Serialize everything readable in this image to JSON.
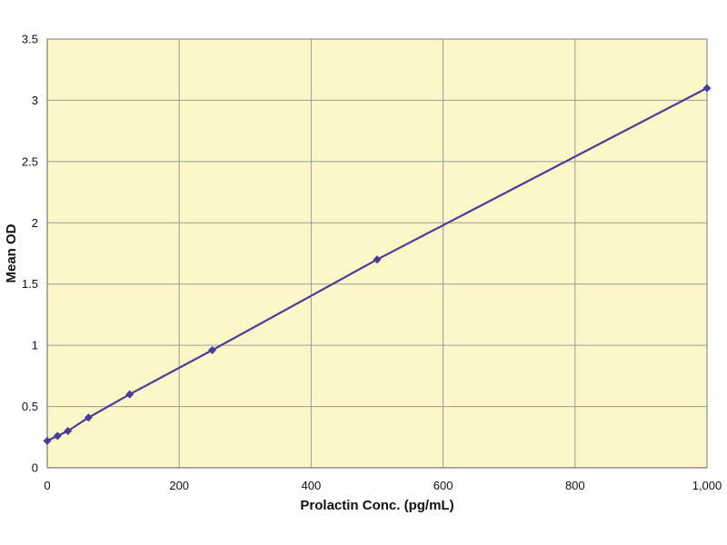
{
  "chart_data": {
    "type": "line",
    "title": "",
    "xlabel": "Prolactin Conc. (pg/mL)",
    "ylabel": "Mean OD",
    "xlim": [
      0,
      1000
    ],
    "ylim": [
      0,
      3.5
    ],
    "x_ticks": [
      0,
      200,
      400,
      600,
      800,
      1000
    ],
    "x_tick_labels": [
      "0",
      "200",
      "400",
      "600",
      "800",
      "1,000"
    ],
    "y_ticks": [
      0,
      0.5,
      1,
      1.5,
      2,
      2.5,
      3,
      3.5
    ],
    "y_tick_labels": [
      "0",
      "0.5",
      "1",
      "1.5",
      "2",
      "2.5",
      "3",
      "3.5"
    ],
    "grid": true,
    "legend": "none",
    "marker": "diamond",
    "colors": {
      "plot_background": "#fcf6c9",
      "series": "#4a3d96",
      "grid": "#9c9c9c",
      "axis": "#7a7a7a"
    },
    "series": [
      {
        "x": [
          0,
          15.6,
          31.3,
          62.5,
          125,
          250,
          500,
          1000
        ],
        "y": [
          0.22,
          0.26,
          0.3,
          0.41,
          0.6,
          0.96,
          1.7,
          3.1
        ]
      }
    ]
  }
}
